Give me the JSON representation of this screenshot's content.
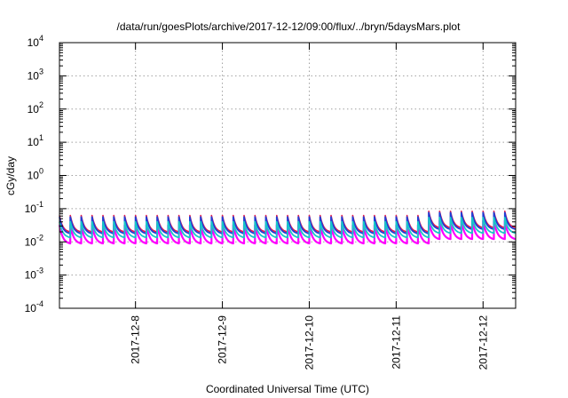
{
  "chart_data": {
    "type": "line",
    "title": "/data/run/goesPlots/archive/2017-12-12/09:00/flux/../bryn/5daysMars.plot",
    "xlabel": "Coordinated Universal Time (UTC)",
    "ylabel": "cGy/day",
    "y_scale": "log",
    "ylim": [
      0.0001,
      10000
    ],
    "xlim": [
      "2017-12-07T03:00",
      "2017-12-12T09:00"
    ],
    "grid": true,
    "legend": "none",
    "x_ticks": [
      "2017-12-8",
      "2017-12-9",
      "2017-12-10",
      "2017-12-11",
      "2017-12-12"
    ],
    "y_ticks": [
      {
        "base": "10",
        "exp": "-4"
      },
      {
        "base": "10",
        "exp": "-3"
      },
      {
        "base": "10",
        "exp": "-2"
      },
      {
        "base": "10",
        "exp": "-1"
      },
      {
        "base": "10",
        "exp": "0"
      },
      {
        "base": "10",
        "exp": "1"
      },
      {
        "base": "10",
        "exp": "2"
      },
      {
        "base": "10",
        "exp": "3"
      },
      {
        "base": "10",
        "exp": "4"
      }
    ],
    "pattern": {
      "cycle_hours": 3,
      "cycles": 43,
      "enhanced_start": "2017-12-11T09:00",
      "enhanced_factor": 1.35
    },
    "series": [
      {
        "color": "#e6194b",
        "peak": 0.062,
        "trough": 0.019,
        "width": 1.6
      },
      {
        "color": "#ff00ff",
        "peak": 0.032,
        "trough": 0.0085,
        "width": 2.2
      },
      {
        "color": "#1f3fd6",
        "peak": 0.056,
        "trough": 0.017,
        "width": 1.8
      },
      {
        "color": "#18c8c8",
        "peak": 0.04,
        "trough": 0.013,
        "width": 1.8
      }
    ]
  }
}
